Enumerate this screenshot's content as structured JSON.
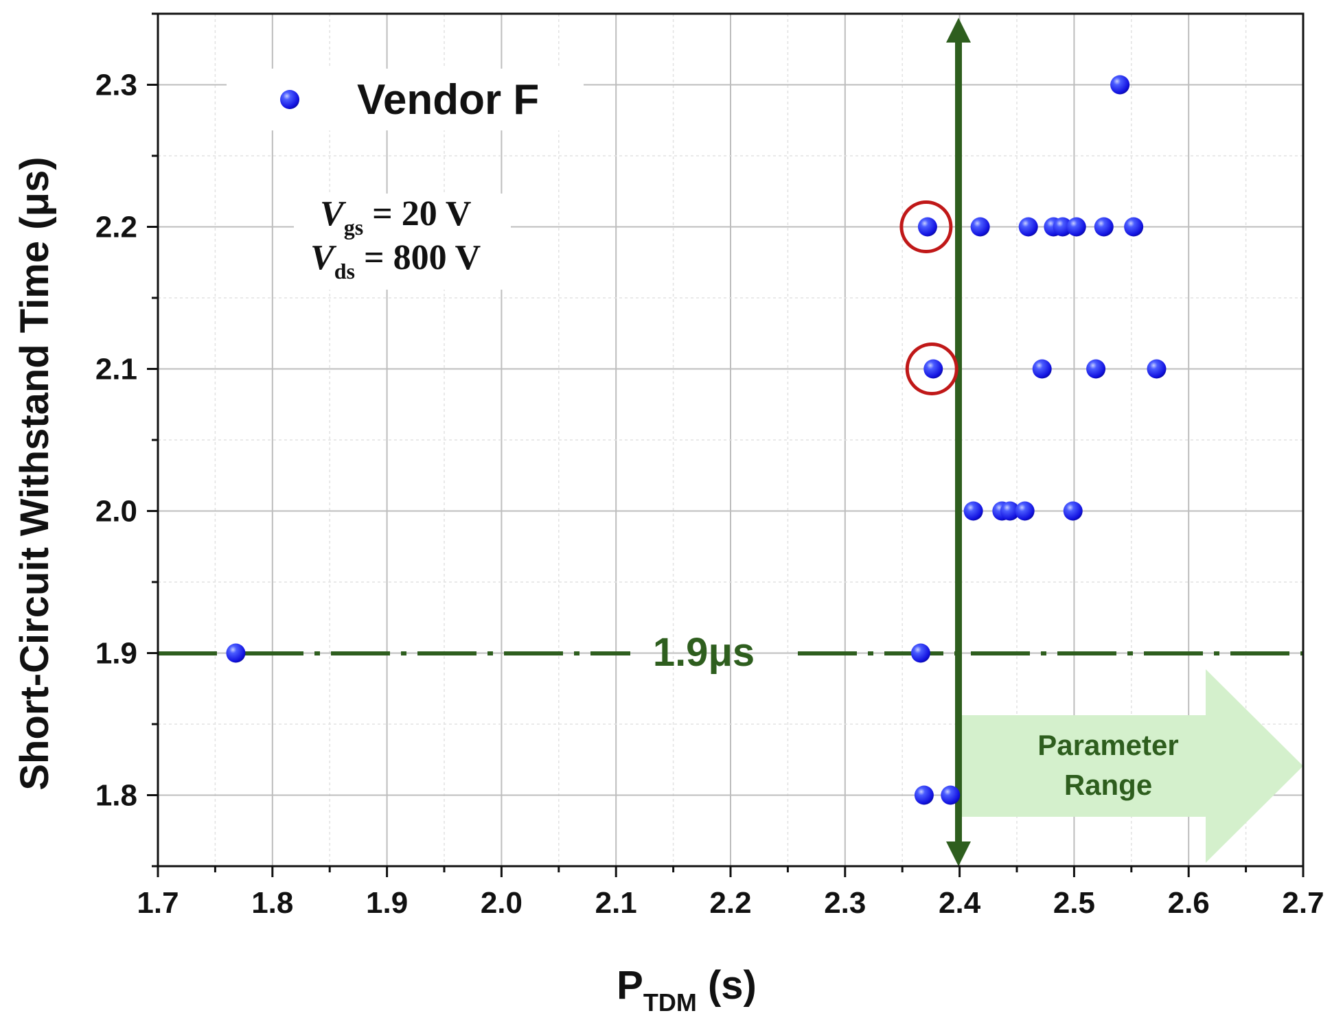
{
  "chart_data": {
    "type": "scatter",
    "xlabel": {
      "main": "P",
      "sub": "TDM",
      "unit": " (s)"
    },
    "ylabel": "Short-Circuit Withstand Time (μs)",
    "xlim": [
      1.7,
      2.7
    ],
    "ylim": [
      1.75,
      2.35
    ],
    "x_ticks": [
      "1.7",
      "1.8",
      "1.9",
      "2.0",
      "2.1",
      "2.2",
      "2.3",
      "2.4",
      "2.5",
      "2.6",
      "2.7"
    ],
    "y_ticks": [
      "1.8",
      "1.9",
      "2.0",
      "2.1",
      "2.2",
      "2.3"
    ],
    "grid": true,
    "legend_position": "top-left",
    "series": [
      {
        "name": "Vendor F",
        "color": "#1a1aff",
        "points": [
          {
            "x": 2.54,
            "y": 2.3
          },
          {
            "x": 2.372,
            "y": 2.2
          },
          {
            "x": 2.418,
            "y": 2.2
          },
          {
            "x": 2.46,
            "y": 2.2
          },
          {
            "x": 2.482,
            "y": 2.2
          },
          {
            "x": 2.49,
            "y": 2.2
          },
          {
            "x": 2.502,
            "y": 2.2
          },
          {
            "x": 2.526,
            "y": 2.2
          },
          {
            "x": 2.552,
            "y": 2.2
          },
          {
            "x": 2.377,
            "y": 2.1
          },
          {
            "x": 2.472,
            "y": 2.1
          },
          {
            "x": 2.519,
            "y": 2.1
          },
          {
            "x": 2.572,
            "y": 2.1
          },
          {
            "x": 2.412,
            "y": 2.0
          },
          {
            "x": 2.437,
            "y": 2.0
          },
          {
            "x": 2.444,
            "y": 2.0
          },
          {
            "x": 2.457,
            "y": 2.0
          },
          {
            "x": 2.499,
            "y": 2.0
          },
          {
            "x": 1.768,
            "y": 1.9
          },
          {
            "x": 2.366,
            "y": 1.9
          },
          {
            "x": 2.369,
            "y": 1.8
          },
          {
            "x": 2.392,
            "y": 1.8
          }
        ]
      }
    ],
    "highlighted_points": [
      {
        "x": 2.372,
        "y": 2.2
      },
      {
        "x": 2.377,
        "y": 2.1
      }
    ],
    "annotations": {
      "threshold": {
        "y": 1.9,
        "label": "1.9μs",
        "color": "#2e5e1e"
      },
      "vertical_line": {
        "x": 2.4,
        "color": "#2e5e1e"
      },
      "conditions": [
        {
          "symbol": "V",
          "sub": "gs",
          "text": " = 20 V"
        },
        {
          "symbol": "V",
          "sub": "ds",
          "text": " = 800 V"
        }
      ],
      "range_arrow": {
        "label_line1": "Parameter",
        "label_line2": "Range",
        "color": "#2e5e1e",
        "fill": "#d4f0cc"
      }
    }
  }
}
